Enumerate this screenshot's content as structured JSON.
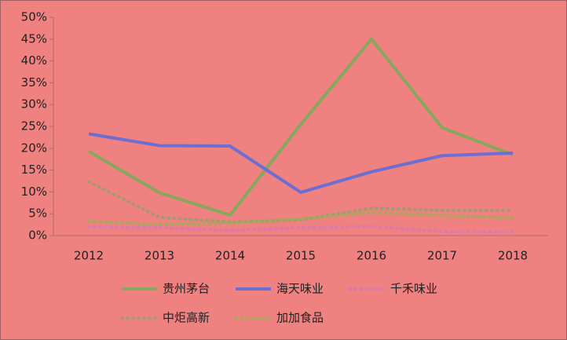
{
  "chart_data": {
    "type": "line",
    "categories": [
      "2012",
      "2013",
      "2014",
      "2015",
      "2016",
      "2017",
      "2018"
    ],
    "series": [
      {
        "name": "贵州茅台",
        "color": "#86a75c",
        "style": "solid",
        "values": [
          19.3,
          9.8,
          4.7,
          25.5,
          45,
          24.7,
          18.5
        ]
      },
      {
        "name": "海天味业",
        "color": "#6c6ed2",
        "style": "solid",
        "values": [
          23.3,
          20.6,
          20.5,
          9.9,
          14.6,
          18.3,
          18.9
        ]
      },
      {
        "name": "千禾味业",
        "color": "#d87aae",
        "style": "dotted",
        "values": [
          2.0,
          1.8,
          1.2,
          1.8,
          2.1,
          0.9,
          0.9
        ]
      },
      {
        "name": "中炬高新",
        "color": "#a39a70",
        "style": "dotted",
        "values": [
          12.3,
          4.2,
          3.1,
          3.6,
          6.3,
          5.8,
          5.7
        ]
      },
      {
        "name": "加加食品",
        "color": "#a6a85a",
        "style": "dotted",
        "values": [
          3.3,
          2.5,
          2.9,
          3.8,
          5.3,
          4.6,
          4.0
        ]
      }
    ],
    "ylim": [
      0,
      50
    ],
    "yticks": [
      {
        "value": 0,
        "label": "0%"
      },
      {
        "value": 5,
        "label": "5%"
      },
      {
        "value": 10,
        "label": "10%"
      },
      {
        "value": 15,
        "label": "15%"
      },
      {
        "value": 20,
        "label": "20%"
      },
      {
        "value": 25,
        "label": "25%"
      },
      {
        "value": 30,
        "label": "30%"
      },
      {
        "value": 35,
        "label": "35%"
      },
      {
        "value": 40,
        "label": "40%"
      },
      {
        "value": 45,
        "label": "45%"
      },
      {
        "value": 50,
        "label": "50%"
      }
    ],
    "grid": false
  }
}
